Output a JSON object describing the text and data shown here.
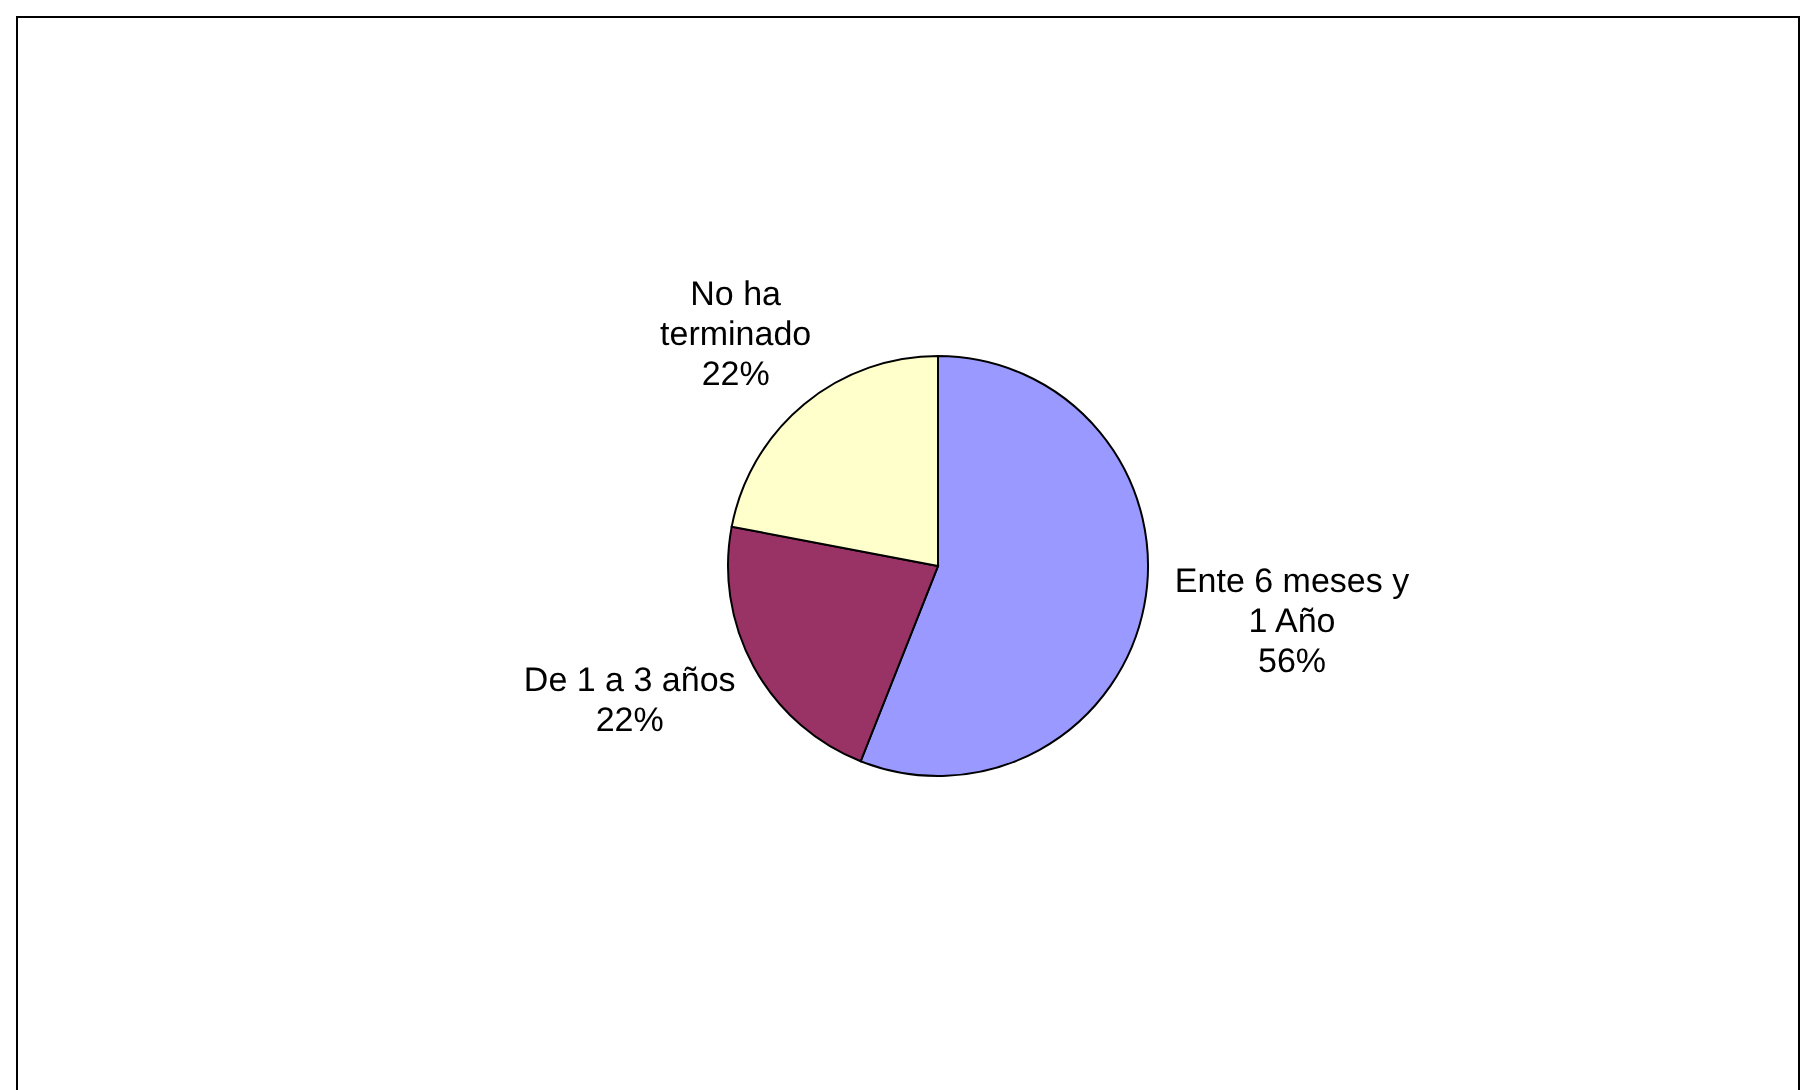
{
  "chart_data": {
    "type": "pie",
    "categories": [
      "Ente 6 meses y 1 Año",
      "De 1 a 3 años",
      "No ha terminado"
    ],
    "values": [
      56,
      22,
      22
    ],
    "colors": [
      "#9999ff",
      "#993366",
      "#ffffcc"
    ],
    "value_labels": [
      "56%",
      "22%",
      "22%"
    ]
  }
}
